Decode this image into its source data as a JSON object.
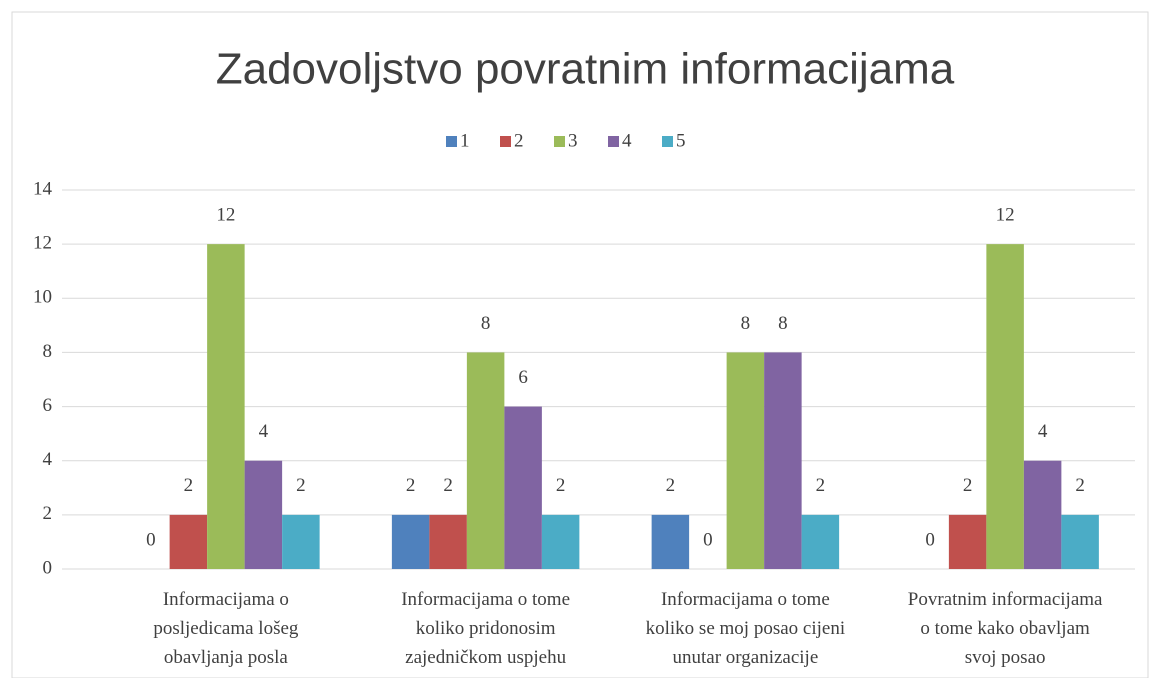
{
  "chart_data": {
    "type": "bar",
    "title": "Zadovoljstvo povratnim informacijama",
    "categories": [
      "Informacijama o\nposljedicama lošeg\nobavljanja posla",
      "Informacijama o tome\nkoliko pridonosim\nzajedničkom uspjehu",
      "Informacijama o tome\nkoliko se moj posao cijeni\nunutar organizacije",
      "Povratnim informacijama\no tome kako obavljam\nsvoj posao"
    ],
    "series": [
      {
        "name": "1",
        "color": "#4f81bd",
        "values": [
          0,
          2,
          2,
          0
        ]
      },
      {
        "name": "2",
        "color": "#c0504d",
        "values": [
          2,
          2,
          0,
          2
        ]
      },
      {
        "name": "3",
        "color": "#9bbb59",
        "values": [
          12,
          8,
          8,
          12
        ]
      },
      {
        "name": "4",
        "color": "#8064a2",
        "values": [
          4,
          6,
          8,
          4
        ]
      },
      {
        "name": "5",
        "color": "#4bacc6",
        "values": [
          2,
          2,
          2,
          2
        ]
      }
    ],
    "ylim": [
      0,
      14
    ],
    "yticks": [
      0,
      2,
      4,
      6,
      8,
      10,
      12,
      14
    ],
    "grid": true,
    "legend": "top"
  }
}
